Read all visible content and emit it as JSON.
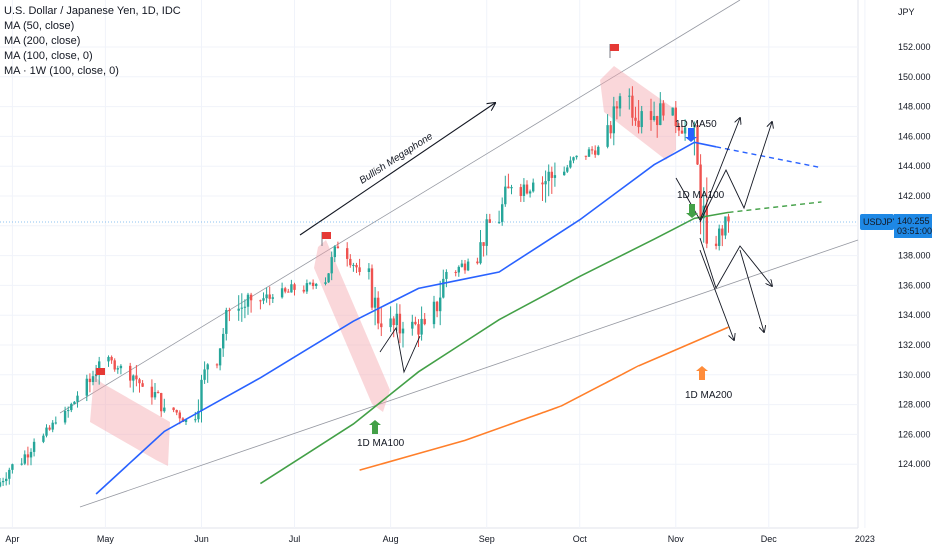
{
  "header": {
    "symbol_title": "U.S. Dollar / Japanese Yen, 1D, IDC",
    "indicators": [
      "MA (50, close)",
      "MA (200, close)",
      "MA (100, close, 0)",
      "MA · 1W (100, close, 0)"
    ]
  },
  "price_scale": {
    "currency": "JPY",
    "ticks": [
      "152.000",
      "150.000",
      "148.000",
      "146.000",
      "144.000",
      "142.000",
      "140.000",
      "138.000",
      "136.000",
      "134.000",
      "132.000",
      "130.000",
      "128.000",
      "126.000",
      "124.000"
    ],
    "ticker_label": "USDJPY",
    "last_price": "140.255",
    "countdown": "03:51:00"
  },
  "time_scale": {
    "labels": [
      "Apr",
      "May",
      "Jun",
      "Jul",
      "Aug",
      "Sep",
      "Oct",
      "Nov",
      "Dec",
      "2023"
    ]
  },
  "annotations": {
    "megaphone": "Bullish Megaphone",
    "ma50": "1D MA50",
    "ma100_right": "1D MA100",
    "ma100_left": "1D MA100",
    "ma200": "1D MA200"
  },
  "colors": {
    "up_candle": "#26a69a",
    "down_candle": "#ef5350",
    "ma50": "#2962ff",
    "ma100": "#43a047",
    "ma200": "#ff7f2a",
    "channel": "#f4a6ad",
    "flag": "#e53935",
    "arrow_blue": "#2962ff",
    "arrow_green": "#43a047",
    "arrow_orange": "#ff8c3a",
    "price_tag": "#1e88e5"
  },
  "icons": [
    "flag-icon",
    "up-arrow-icon",
    "down-arrow-icon"
  ],
  "chart_data": {
    "type": "candlestick",
    "title": "U.S. Dollar / Japanese Yen, 1D, IDC",
    "y_unit": "JPY",
    "ylim": [
      123.3,
      153.3
    ],
    "x_range": [
      "2022-03-28",
      "2023-01-09"
    ],
    "y_scale": "linear",
    "grid": true,
    "ohlc_weekly_approx": [
      {
        "date": "2022-03-28",
        "o": 122.5,
        "h": 124.2,
        "l": 122.2,
        "c": 124.0
      },
      {
        "date": "2022-04-04",
        "o": 124.0,
        "h": 125.8,
        "l": 123.6,
        "c": 125.5
      },
      {
        "date": "2022-04-11",
        "o": 125.5,
        "h": 127.2,
        "l": 125.2,
        "c": 126.8
      },
      {
        "date": "2022-04-18",
        "o": 126.8,
        "h": 128.9,
        "l": 126.5,
        "c": 128.6
      },
      {
        "date": "2022-04-25",
        "o": 128.6,
        "h": 131.2,
        "l": 127.9,
        "c": 130.9
      },
      {
        "date": "2022-05-02",
        "o": 130.9,
        "h": 131.3,
        "l": 129.6,
        "c": 130.6
      },
      {
        "date": "2022-05-09",
        "o": 130.6,
        "h": 130.8,
        "l": 127.6,
        "c": 129.2
      },
      {
        "date": "2022-05-16",
        "o": 129.2,
        "h": 129.8,
        "l": 127.0,
        "c": 127.8
      },
      {
        "date": "2022-05-23",
        "o": 127.8,
        "h": 128.4,
        "l": 126.4,
        "c": 127.0
      },
      {
        "date": "2022-05-30",
        "o": 127.0,
        "h": 130.9,
        "l": 126.8,
        "c": 130.7
      },
      {
        "date": "2022-06-06",
        "o": 130.7,
        "h": 134.5,
        "l": 130.3,
        "c": 134.3
      },
      {
        "date": "2022-06-13",
        "o": 134.3,
        "h": 135.5,
        "l": 131.5,
        "c": 135.0
      },
      {
        "date": "2022-06-20",
        "o": 135.0,
        "h": 136.7,
        "l": 134.3,
        "c": 135.2
      },
      {
        "date": "2022-06-27",
        "o": 135.2,
        "h": 137.0,
        "l": 134.7,
        "c": 135.7
      },
      {
        "date": "2022-07-04",
        "o": 135.7,
        "h": 136.4,
        "l": 134.8,
        "c": 136.1
      },
      {
        "date": "2022-07-11",
        "o": 136.1,
        "h": 139.3,
        "l": 136.0,
        "c": 138.5
      },
      {
        "date": "2022-07-18",
        "o": 138.5,
        "h": 138.9,
        "l": 136.5,
        "c": 136.9
      },
      {
        "date": "2022-07-25",
        "o": 136.9,
        "h": 137.5,
        "l": 132.6,
        "c": 133.2
      },
      {
        "date": "2022-08-01",
        "o": 133.2,
        "h": 135.0,
        "l": 130.4,
        "c": 133.1
      },
      {
        "date": "2022-08-08",
        "o": 133.1,
        "h": 135.4,
        "l": 131.8,
        "c": 133.4
      },
      {
        "date": "2022-08-15",
        "o": 133.4,
        "h": 137.2,
        "l": 132.6,
        "c": 136.9
      },
      {
        "date": "2022-08-22",
        "o": 136.9,
        "h": 137.8,
        "l": 135.8,
        "c": 137.6
      },
      {
        "date": "2022-08-29",
        "o": 137.6,
        "h": 140.8,
        "l": 137.4,
        "c": 140.2
      },
      {
        "date": "2022-09-05",
        "o": 140.2,
        "h": 144.9,
        "l": 140.0,
        "c": 142.6
      },
      {
        "date": "2022-09-12",
        "o": 142.6,
        "h": 144.9,
        "l": 141.6,
        "c": 142.9
      },
      {
        "date": "2022-09-19",
        "o": 142.9,
        "h": 145.9,
        "l": 140.4,
        "c": 143.4
      },
      {
        "date": "2022-09-26",
        "o": 143.4,
        "h": 144.9,
        "l": 143.3,
        "c": 144.7
      },
      {
        "date": "2022-10-03",
        "o": 144.7,
        "h": 145.4,
        "l": 143.5,
        "c": 145.3
      },
      {
        "date": "2022-10-10",
        "o": 145.3,
        "h": 148.9,
        "l": 145.2,
        "c": 148.7
      },
      {
        "date": "2022-10-17",
        "o": 148.7,
        "h": 151.9,
        "l": 146.2,
        "c": 147.7
      },
      {
        "date": "2022-10-24",
        "o": 147.7,
        "h": 149.7,
        "l": 145.1,
        "c": 147.4
      },
      {
        "date": "2022-10-31",
        "o": 147.4,
        "h": 148.8,
        "l": 145.7,
        "c": 146.6
      },
      {
        "date": "2022-11-07",
        "o": 146.6,
        "h": 147.0,
        "l": 138.5,
        "c": 138.8
      },
      {
        "date": "2022-11-14",
        "o": 138.8,
        "h": 140.8,
        "l": 137.7,
        "c": 140.3
      }
    ],
    "series": [
      {
        "name": "MA (50, close)",
        "color": "#2962ff",
        "x": [
          "2022-04-28",
          "2022-05-20",
          "2022-06-20",
          "2022-07-20",
          "2022-08-10",
          "2022-09-05",
          "2022-10-01",
          "2022-10-25",
          "2022-11-07",
          "2022-11-14"
        ],
        "y": [
          122.0,
          126.2,
          129.8,
          133.6,
          135.8,
          136.9,
          140.4,
          144.1,
          145.6,
          145.3
        ]
      },
      {
        "name": "MA (100, close, 0)",
        "color": "#43a047",
        "x": [
          "2022-06-20",
          "2022-07-20",
          "2022-08-10",
          "2022-09-05",
          "2022-10-01",
          "2022-10-25",
          "2022-11-07",
          "2022-11-18"
        ],
        "y": [
          122.7,
          126.7,
          130.2,
          133.7,
          136.6,
          139.1,
          140.5,
          140.9
        ]
      },
      {
        "name": "MA · 1W (100, close, 0)",
        "color": "#ff7f2a",
        "x": [
          "2022-07-22",
          "2022-08-25",
          "2022-09-25",
          "2022-10-20",
          "2022-11-18"
        ],
        "y": [
          123.6,
          125.6,
          127.9,
          130.6,
          133.2
        ]
      }
    ],
    "projection_paths": [
      {
        "style": "dashed",
        "color": "#2962ff",
        "x": [
          "2022-11-14",
          "2022-12-18"
        ],
        "y": [
          145.3,
          143.9
        ]
      },
      {
        "style": "dashed",
        "color": "#43a047",
        "x": [
          "2022-11-18",
          "2022-12-18"
        ],
        "y": [
          140.9,
          141.6
        ]
      }
    ],
    "last_price": 140.255
  }
}
